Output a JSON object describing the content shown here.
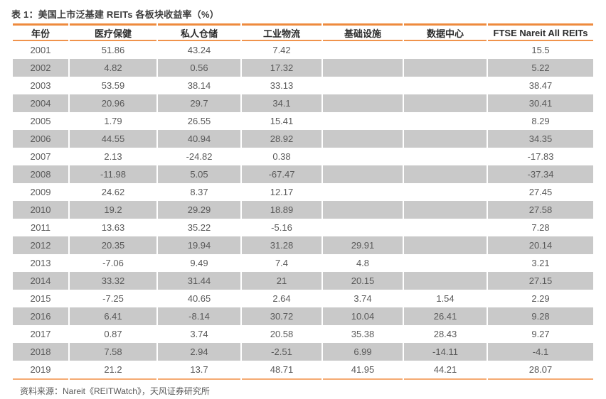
{
  "page": {
    "title": "表 1：美国上市泛基建 REITs 各板块收益率（%）",
    "source_note": "资料来源：Nareit《REITWatch》，天风证券研究所"
  },
  "colors": {
    "accent_orange": "#EE8A3D",
    "accent_orange_light": "#F5AB73",
    "row_stripe_gray": "#C9C9C9",
    "header_text": "#2B2B2B",
    "data_text": "#595959"
  },
  "chart_data": {
    "type": "table",
    "title": "表 1：美国上市泛基建 REITs 各板块收益率（%）",
    "columns": [
      "年份",
      "医疗保健",
      "私人仓储",
      "工业物流",
      "基础设施",
      "数据中心",
      "FTSE Nareit All REITs"
    ],
    "rows": [
      [
        "2001",
        "51.86",
        "43.24",
        "7.42",
        "",
        "",
        "15.5"
      ],
      [
        "2002",
        "4.82",
        "0.56",
        "17.32",
        "",
        "",
        "5.22"
      ],
      [
        "2003",
        "53.59",
        "38.14",
        "33.13",
        "",
        "",
        "38.47"
      ],
      [
        "2004",
        "20.96",
        "29.7",
        "34.1",
        "",
        "",
        "30.41"
      ],
      [
        "2005",
        "1.79",
        "26.55",
        "15.41",
        "",
        "",
        "8.29"
      ],
      [
        "2006",
        "44.55",
        "40.94",
        "28.92",
        "",
        "",
        "34.35"
      ],
      [
        "2007",
        "2.13",
        "-24.82",
        "0.38",
        "",
        "",
        "-17.83"
      ],
      [
        "2008",
        "-11.98",
        "5.05",
        "-67.47",
        "",
        "",
        "-37.34"
      ],
      [
        "2009",
        "24.62",
        "8.37",
        "12.17",
        "",
        "",
        "27.45"
      ],
      [
        "2010",
        "19.2",
        "29.29",
        "18.89",
        "",
        "",
        "27.58"
      ],
      [
        "2011",
        "13.63",
        "35.22",
        "-5.16",
        "",
        "",
        "7.28"
      ],
      [
        "2012",
        "20.35",
        "19.94",
        "31.28",
        "29.91",
        "",
        "20.14"
      ],
      [
        "2013",
        "-7.06",
        "9.49",
        "7.4",
        "4.8",
        "",
        "3.21"
      ],
      [
        "2014",
        "33.32",
        "31.44",
        "21",
        "20.15",
        "",
        "27.15"
      ],
      [
        "2015",
        "-7.25",
        "40.65",
        "2.64",
        "3.74",
        "1.54",
        "2.29"
      ],
      [
        "2016",
        "6.41",
        "-8.14",
        "30.72",
        "10.04",
        "26.41",
        "9.28"
      ],
      [
        "2017",
        "0.87",
        "3.74",
        "20.58",
        "35.38",
        "28.43",
        "9.27"
      ],
      [
        "2018",
        "7.58",
        "2.94",
        "-2.51",
        "6.99",
        "-14.11",
        "-4.1"
      ],
      [
        "2019",
        "21.2",
        "13.7",
        "48.71",
        "41.95",
        "44.21",
        "28.07"
      ]
    ]
  }
}
